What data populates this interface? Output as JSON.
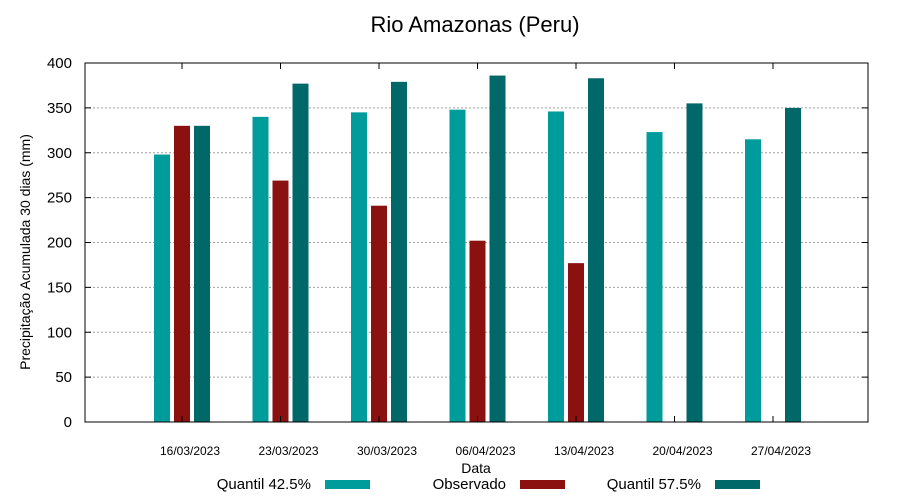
{
  "chart_data": {
    "type": "bar",
    "title": "Rio Amazonas (Peru)",
    "xlabel": "Data",
    "ylabel": "Precipitação Acumulada 30 dias (mm)",
    "ylim": [
      0,
      400
    ],
    "yticks": [
      0,
      50,
      100,
      150,
      200,
      250,
      300,
      350,
      400
    ],
    "categories": [
      "16/03/2023",
      "23/03/2023",
      "30/03/2023",
      "06/04/2023",
      "13/04/2023",
      "20/04/2023",
      "27/04/2023"
    ],
    "series": [
      {
        "name": "Quantil 42.5%",
        "color": "#009b9b",
        "values": [
          298,
          340,
          345,
          348,
          346,
          323,
          315
        ]
      },
      {
        "name": "Observado",
        "color": "#8b1010",
        "values": [
          330,
          269,
          241,
          202,
          177,
          null,
          null
        ]
      },
      {
        "name": "Quantil 57.5%",
        "color": "#006868",
        "values": [
          330,
          377,
          379,
          386,
          383,
          355,
          350
        ]
      }
    ],
    "grid": true,
    "legend_position": "bottom"
  }
}
